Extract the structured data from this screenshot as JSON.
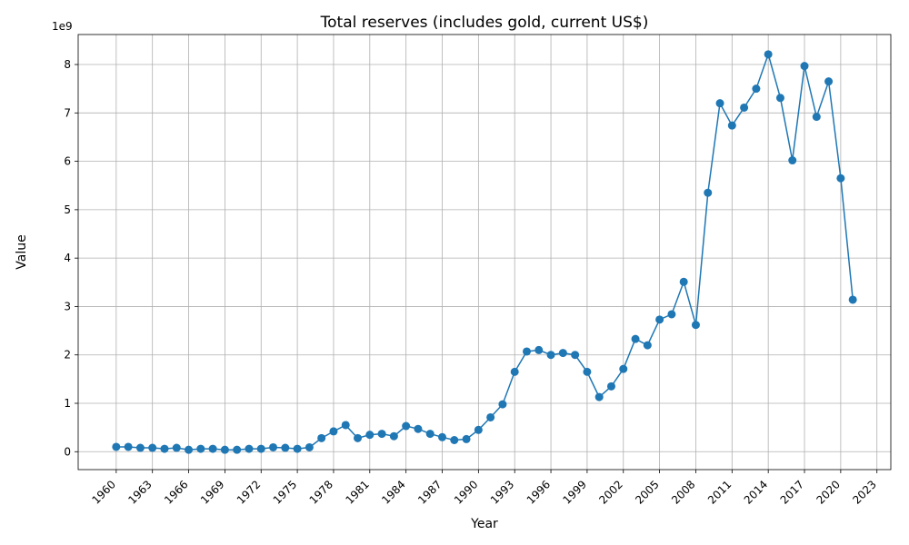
{
  "chart_data": {
    "type": "line",
    "title": "Total reserves (includes gold, current US$)",
    "xlabel": "Year",
    "ylabel": "Value",
    "y_offset_text": "1e9",
    "y_multiplier": 1000000000,
    "x": [
      1960,
      1961,
      1962,
      1963,
      1964,
      1965,
      1966,
      1967,
      1968,
      1969,
      1970,
      1971,
      1972,
      1973,
      1974,
      1975,
      1976,
      1977,
      1978,
      1979,
      1980,
      1981,
      1982,
      1983,
      1984,
      1985,
      1986,
      1987,
      1988,
      1989,
      1990,
      1991,
      1992,
      1993,
      1994,
      1995,
      1996,
      1997,
      1998,
      1999,
      2000,
      2001,
      2002,
      2003,
      2004,
      2005,
      2006,
      2007,
      2008,
      2009,
      2010,
      2011,
      2012,
      2013,
      2014,
      2015,
      2016,
      2017,
      2018,
      2019,
      2020,
      2021
    ],
    "series": [
      {
        "values": [
          0.1,
          0.1,
          0.08,
          0.08,
          0.06,
          0.08,
          0.04,
          0.06,
          0.06,
          0.04,
          0.04,
          0.06,
          0.06,
          0.09,
          0.08,
          0.06,
          0.09,
          0.28,
          0.42,
          0.55,
          0.28,
          0.35,
          0.37,
          0.32,
          0.53,
          0.47,
          0.37,
          0.3,
          0.24,
          0.26,
          0.45,
          0.71,
          0.98,
          1.65,
          2.07,
          2.1,
          2.0,
          2.04,
          2.0,
          1.65,
          1.13,
          1.35,
          1.71,
          2.33,
          2.2,
          2.73,
          2.84,
          3.51,
          2.62,
          5.35,
          7.2,
          6.74,
          7.11,
          7.5,
          8.21,
          7.31,
          6.02,
          7.97,
          6.92,
          7.65,
          5.65,
          3.14
        ],
        "color": "#1f77b4"
      }
    ],
    "xticks": [
      "1960",
      "1963",
      "1966",
      "1969",
      "1972",
      "1975",
      "1978",
      "1981",
      "1984",
      "1987",
      "1990",
      "1993",
      "1996",
      "1999",
      "2002",
      "2005",
      "2008",
      "2011",
      "2014",
      "2017",
      "2020",
      "2023"
    ],
    "yticks": [
      "0",
      "1",
      "2",
      "3",
      "4",
      "5",
      "6",
      "7",
      "8"
    ],
    "xlim": [
      1956.85,
      2024.15
    ],
    "ylim": [
      -0.37,
      8.62
    ],
    "grid": true,
    "legend": "none",
    "marker": "circle"
  }
}
